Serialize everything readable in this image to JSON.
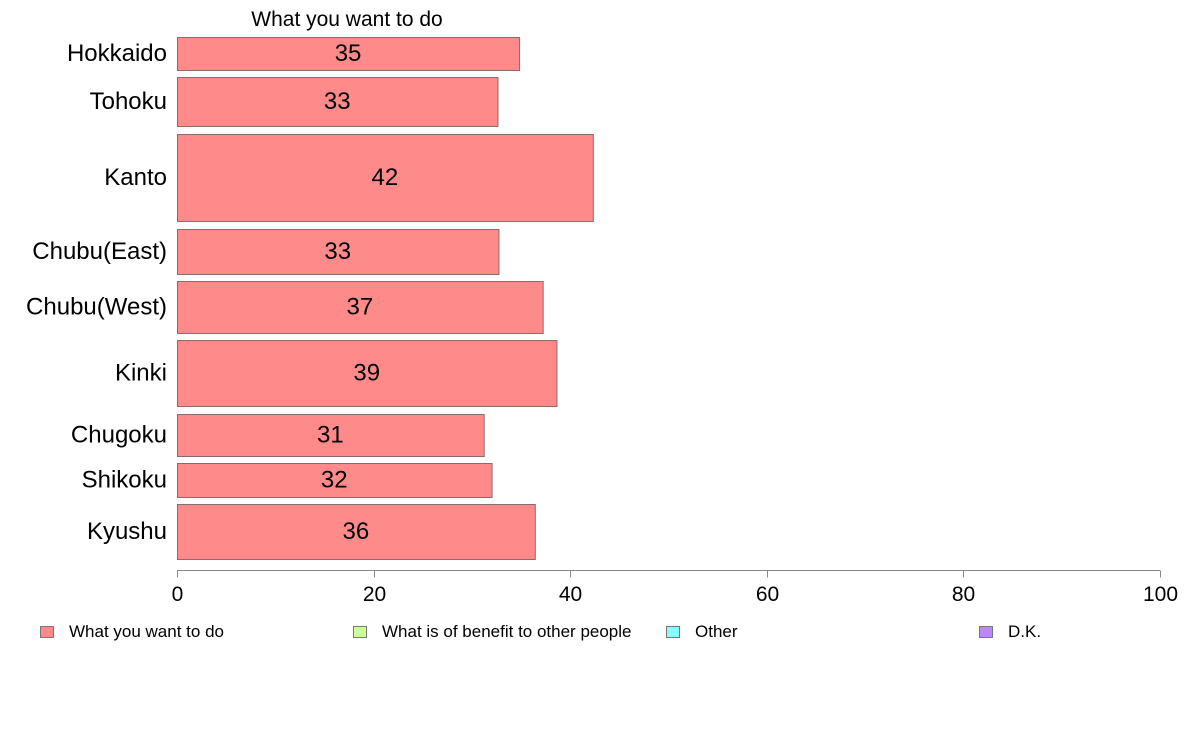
{
  "chart_data": {
    "type": "bar",
    "orientation": "horizontal",
    "title": "What you want to do",
    "categories": [
      "Hokkaido",
      "Tohoku",
      "Kanto",
      "Chubu(East)",
      "Chubu(West)",
      "Kinki",
      "Chugoku",
      "Shikoku",
      "Kyushu"
    ],
    "series": [
      {
        "name": "What you want to do",
        "values": [
          35,
          33,
          42,
          33,
          37,
          39,
          31,
          32,
          36
        ],
        "true_values": [
          34.8,
          32.6,
          42.3,
          32.7,
          37.2,
          38.6,
          31.2,
          32.0,
          36.4
        ],
        "color": "#ff8a8a"
      }
    ],
    "xlim": [
      0,
      100
    ],
    "xticks": [
      0,
      20,
      40,
      60,
      80,
      100
    ],
    "grid": false,
    "legend_position": "bottom"
  },
  "legend": [
    {
      "label": "What you want to do",
      "color": "#ff8a8a"
    },
    {
      "label": "What is of benefit to other people",
      "color": "#ccff99"
    },
    {
      "label": "Other",
      "color": "#88ffff"
    },
    {
      "label": "D.K.",
      "color": "#bb88ff"
    }
  ]
}
